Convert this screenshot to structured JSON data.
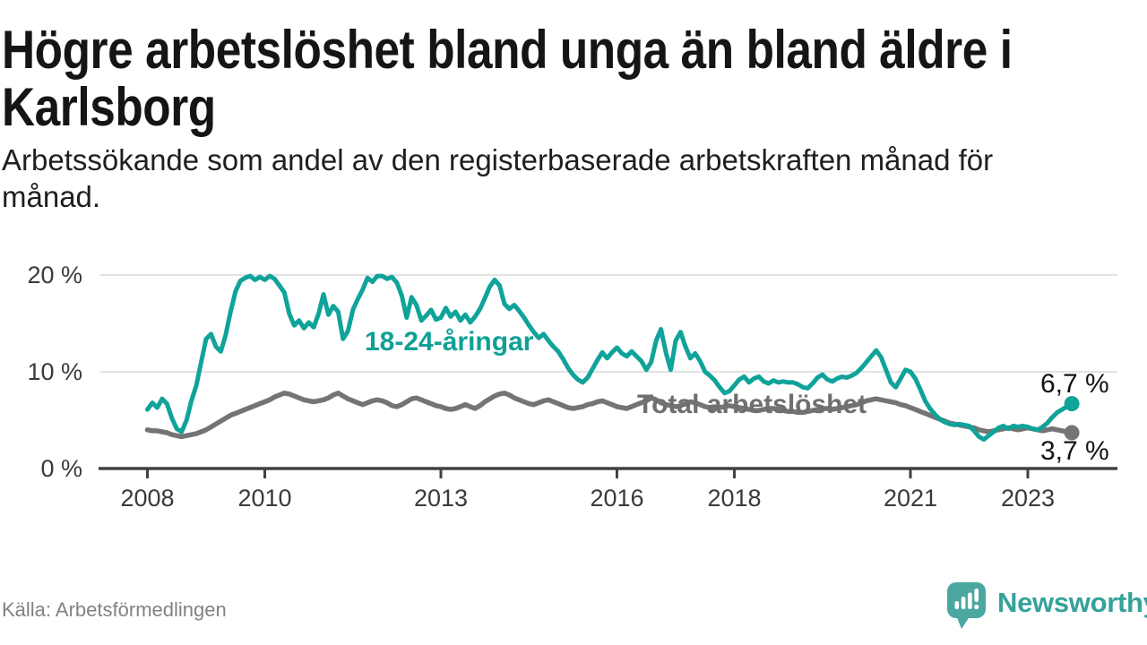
{
  "title": "Högre arbetslöshet bland unga än bland äldre i Karlsborg",
  "subtitle": "Arbetssökande som andel av den registerbaserade arbetskraften månad för månad.",
  "source": "Källa: Arbetsförmedlingen",
  "brand": {
    "name": "Newsworthy",
    "icon": "speech-bubble-bar-chart-exclamation",
    "icon_color": "#4BA8A1",
    "text_color": "#35A29A"
  },
  "colors": {
    "young_line": "#0FA39A",
    "total_line": "#747474",
    "gridline": "#E2E2E2",
    "axis": "#414141",
    "end_label_text": "#141414"
  },
  "chart_data": {
    "type": "line",
    "x_unit": "month",
    "x_start": "2008-01",
    "x_end": "2023-10",
    "grid": "horizontal",
    "legend_position": "inline-labels",
    "ylim": [
      0,
      21.5
    ],
    "y_ticks": [
      {
        "label": "20 %",
        "value": 20
      },
      {
        "label": "10 %",
        "value": 10
      },
      {
        "label": "0 %",
        "value": 0
      }
    ],
    "x_ticks": [
      {
        "label": "2008",
        "value": 2008
      },
      {
        "label": "2010",
        "value": 2010
      },
      {
        "label": "2013",
        "value": 2013
      },
      {
        "label": "2016",
        "value": 2016
      },
      {
        "label": "2018",
        "value": 2018
      },
      {
        "label": "2021",
        "value": 2021
      },
      {
        "label": "2023",
        "value": 2023
      }
    ],
    "series": [
      {
        "name": "18-24-åringar",
        "color": "#0FA39A",
        "end_label": "6,7 %",
        "end_value": 6.7,
        "values": [
          6.1,
          6.8,
          6.3,
          7.2,
          6.7,
          5.2,
          4.1,
          3.8,
          5.0,
          7.0,
          8.6,
          11.0,
          13.4,
          13.9,
          12.6,
          12.1,
          13.8,
          16.2,
          18.3,
          19.4,
          19.7,
          19.9,
          19.5,
          19.8,
          19.5,
          19.9,
          19.6,
          18.9,
          18.2,
          16.0,
          14.8,
          15.3,
          14.5,
          15.1,
          14.6,
          16.0,
          18.0,
          15.9,
          16.8,
          16.2,
          13.4,
          14.2,
          16.4,
          17.5,
          18.5,
          19.7,
          19.3,
          19.9,
          19.9,
          19.6,
          19.8,
          19.2,
          17.9,
          15.6,
          17.7,
          16.9,
          15.3,
          15.8,
          16.4,
          15.4,
          15.6,
          16.6,
          15.7,
          16.2,
          15.3,
          15.9,
          15.1,
          15.7,
          16.5,
          17.6,
          18.8,
          19.5,
          18.9,
          17.0,
          16.5,
          16.9,
          16.3,
          15.6,
          14.8,
          14.1,
          13.5,
          13.9,
          13.2,
          12.6,
          12.1,
          11.3,
          10.4,
          9.7,
          9.2,
          8.9,
          9.4,
          10.3,
          11.2,
          12.0,
          11.4,
          12.0,
          12.5,
          11.9,
          11.6,
          12.1,
          11.6,
          11.1,
          10.2,
          11.0,
          13.2,
          14.4,
          12.0,
          10.2,
          13.2,
          14.1,
          12.6,
          11.4,
          11.9,
          11.1,
          10.0,
          9.6,
          9.1,
          8.4,
          7.8,
          8.0,
          8.6,
          9.2,
          9.5,
          8.9,
          9.3,
          9.5,
          9.0,
          8.8,
          9.1,
          8.9,
          9.0,
          8.9,
          8.9,
          8.7,
          8.4,
          8.3,
          8.8,
          9.4,
          9.7,
          9.2,
          9.0,
          9.3,
          9.5,
          9.4,
          9.6,
          9.9,
          10.4,
          11.0,
          11.6,
          12.2,
          11.5,
          10.2,
          8.9,
          8.4,
          9.3,
          10.2,
          10.0,
          9.3,
          8.2,
          7.0,
          6.2,
          5.6,
          5.1,
          4.8,
          4.6,
          4.5,
          4.6,
          4.5,
          4.4,
          3.9,
          3.3,
          3.0,
          3.4,
          3.8,
          4.2,
          4.4,
          4.1,
          4.4,
          4.3,
          4.4,
          4.3,
          4.1,
          4.0,
          4.3,
          4.7,
          5.3,
          5.8,
          6.1,
          6.4,
          6.7
        ]
      },
      {
        "name": "Total arbetslöshet",
        "color": "#747474",
        "end_label": "3,7 %",
        "end_value": 3.7,
        "values": [
          4.0,
          3.9,
          3.9,
          3.8,
          3.7,
          3.5,
          3.4,
          3.3,
          3.4,
          3.5,
          3.6,
          3.8,
          4.0,
          4.3,
          4.6,
          4.9,
          5.2,
          5.5,
          5.7,
          5.9,
          6.1,
          6.3,
          6.5,
          6.7,
          6.9,
          7.1,
          7.4,
          7.6,
          7.8,
          7.7,
          7.5,
          7.3,
          7.1,
          7.0,
          6.9,
          7.0,
          7.1,
          7.3,
          7.6,
          7.8,
          7.5,
          7.2,
          7.0,
          6.8,
          6.6,
          6.8,
          7.0,
          7.1,
          7.0,
          6.8,
          6.5,
          6.4,
          6.6,
          6.9,
          7.2,
          7.3,
          7.1,
          6.9,
          6.7,
          6.5,
          6.4,
          6.2,
          6.1,
          6.2,
          6.4,
          6.6,
          6.4,
          6.2,
          6.5,
          6.9,
          7.2,
          7.5,
          7.7,
          7.8,
          7.6,
          7.3,
          7.1,
          6.9,
          6.7,
          6.6,
          6.8,
          7.0,
          7.1,
          6.9,
          6.7,
          6.5,
          6.3,
          6.2,
          6.3,
          6.4,
          6.6,
          6.7,
          6.9,
          7.0,
          6.8,
          6.6,
          6.4,
          6.3,
          6.2,
          6.4,
          6.6,
          6.8,
          7.0,
          7.3,
          7.1,
          6.8,
          6.6,
          6.5,
          6.4,
          6.5,
          6.7,
          6.9,
          6.8,
          6.6,
          6.4,
          6.3,
          6.2,
          6.3,
          6.4,
          6.5,
          6.4,
          6.3,
          6.2,
          6.1,
          6.0,
          6.0,
          6.1,
          6.2,
          6.2,
          6.1,
          6.0,
          5.9,
          5.9,
          5.8,
          5.8,
          5.9,
          6.0,
          6.1,
          6.2,
          6.2,
          6.1,
          6.2,
          6.3,
          6.4,
          6.5,
          6.6,
          6.8,
          7.0,
          7.1,
          7.2,
          7.1,
          7.0,
          6.9,
          6.8,
          6.6,
          6.5,
          6.3,
          6.1,
          5.9,
          5.7,
          5.5,
          5.3,
          5.1,
          4.9,
          4.7,
          4.6,
          4.5,
          4.4,
          4.3,
          4.2,
          4.0,
          3.9,
          3.8,
          3.9,
          4.0,
          4.1,
          4.2,
          4.1,
          4.0,
          4.1,
          4.2,
          4.1,
          4.0,
          3.9,
          4.0,
          4.1,
          4.0,
          3.9,
          3.8,
          3.7
        ]
      }
    ]
  }
}
